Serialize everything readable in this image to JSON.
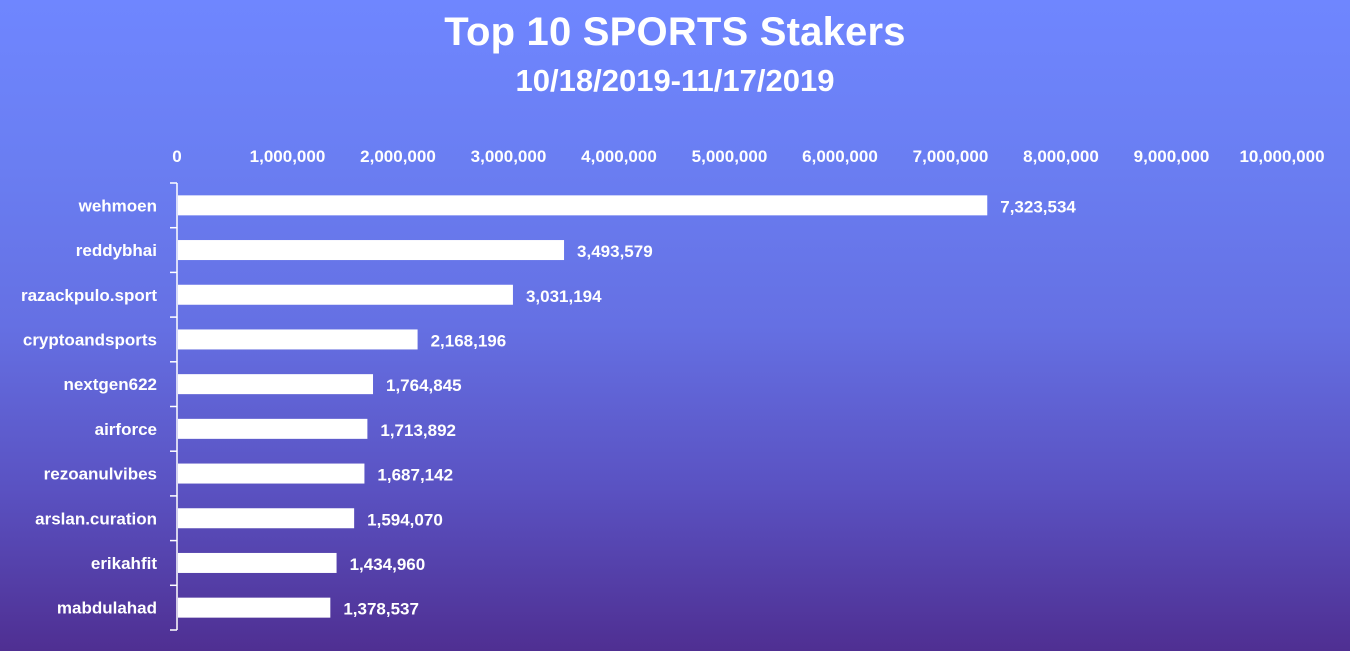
{
  "chart_data": {
    "type": "bar",
    "orientation": "horizontal",
    "title": "Top 10 SPORTS Stakers",
    "subtitle": "10/18/2019-11/17/2019",
    "xlabel": "",
    "ylabel": "",
    "categories": [
      "wehmoen",
      "reddybhai",
      "razackpulo.sport",
      "cryptoandsports",
      "nextgen622",
      "airforce",
      "rezoanulvibes",
      "arslan.curation",
      "erikahfit",
      "mabdulahad"
    ],
    "values": [
      7323534,
      3493579,
      3031194,
      2168196,
      1764845,
      1713892,
      1687142,
      1594070,
      1434960,
      1378537
    ],
    "value_labels": [
      "7,323,534",
      "3,493,579",
      "3,031,194",
      "2,168,196",
      "1,764,845",
      "1,713,892",
      "1,687,142",
      "1,594,070",
      "1,434,960",
      "1,378,537"
    ],
    "xlim": [
      0,
      10000000
    ],
    "x_ticks": [
      0,
      1000000,
      2000000,
      3000000,
      4000000,
      5000000,
      6000000,
      7000000,
      8000000,
      9000000,
      10000000
    ],
    "x_tick_labels": [
      "0",
      "1,000,000",
      "2,000,000",
      "3,000,000",
      "4,000,000",
      "5,000,000",
      "6,000,000",
      "7,000,000",
      "8,000,000",
      "9,000,000",
      "10,000,000"
    ],
    "x_axis_position": "top",
    "grid": false,
    "legend": "none",
    "bar_color": "#ffffff",
    "text_color": "#ffffff"
  }
}
